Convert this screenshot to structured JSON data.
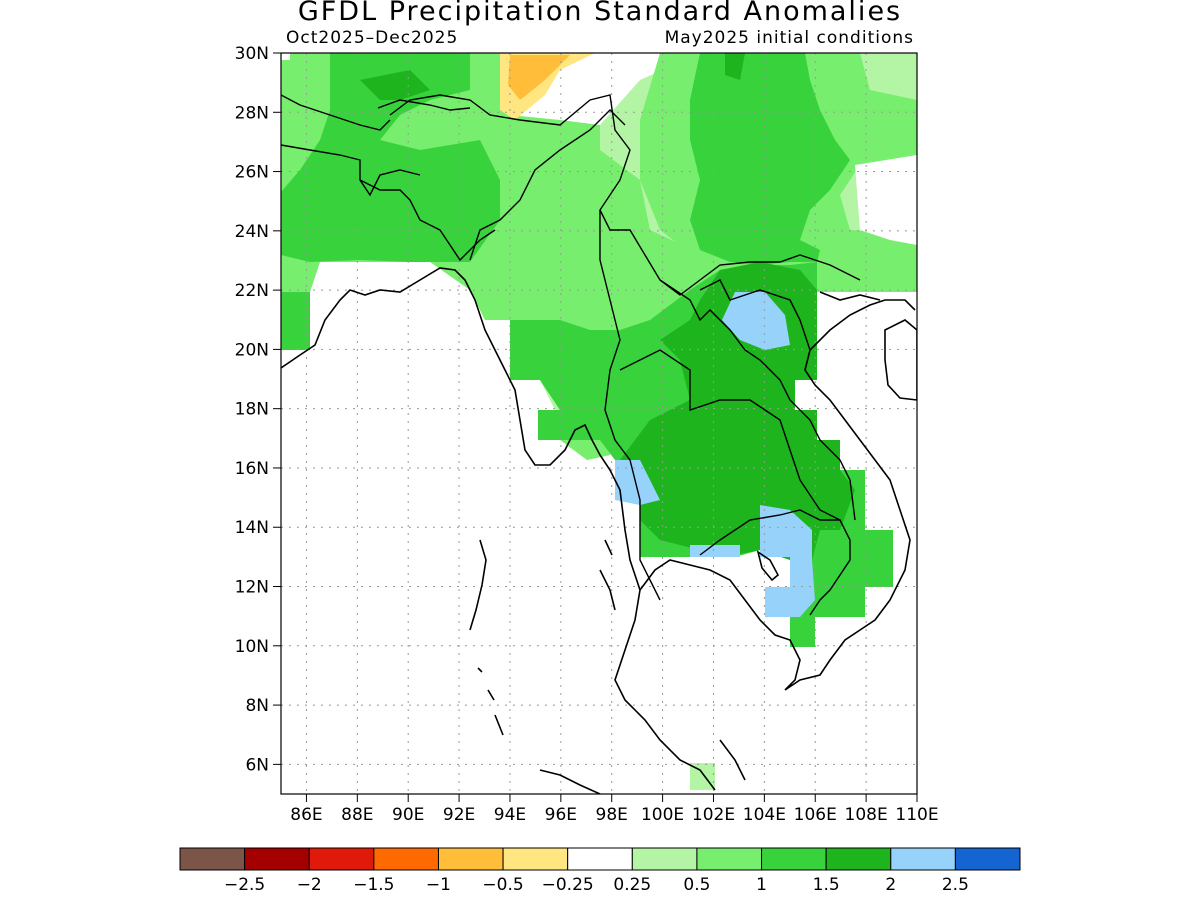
{
  "header": {
    "title": "GFDL Precipitation Standard Anomalies",
    "period": "Oct2025–Dec2025",
    "initial_conditions": "May2025 initial conditions"
  },
  "map": {
    "lon_range": [
      85,
      110
    ],
    "lat_range": [
      5,
      30
    ],
    "lat_labels": [
      "30N",
      "28N",
      "26N",
      "24N",
      "22N",
      "20N",
      "18N",
      "16N",
      "14N",
      "12N",
      "10N",
      "8N",
      "6N"
    ],
    "lon_labels": [
      "86E",
      "88E",
      "90E",
      "92E",
      "94E",
      "96E",
      "98E",
      "100E",
      "102E",
      "104E",
      "106E",
      "108E",
      "110E"
    ],
    "gridlines": "dotted"
  },
  "colorbar": {
    "colors": [
      "#7a5548",
      "#a50000",
      "#e01a0a",
      "#ff6a00",
      "#ffbd3a",
      "#ffe680",
      "#ffffff",
      "#b4f5a5",
      "#78ee6e",
      "#37d23c",
      "#1eb41e",
      "#96d2fa",
      "#1464d2"
    ],
    "labels": [
      "−2.5",
      "−2",
      "−1.5",
      "−1",
      "−0.5",
      "−0.25",
      "0.25",
      "0.5",
      "1",
      "1.5",
      "2",
      "2.5"
    ]
  }
}
